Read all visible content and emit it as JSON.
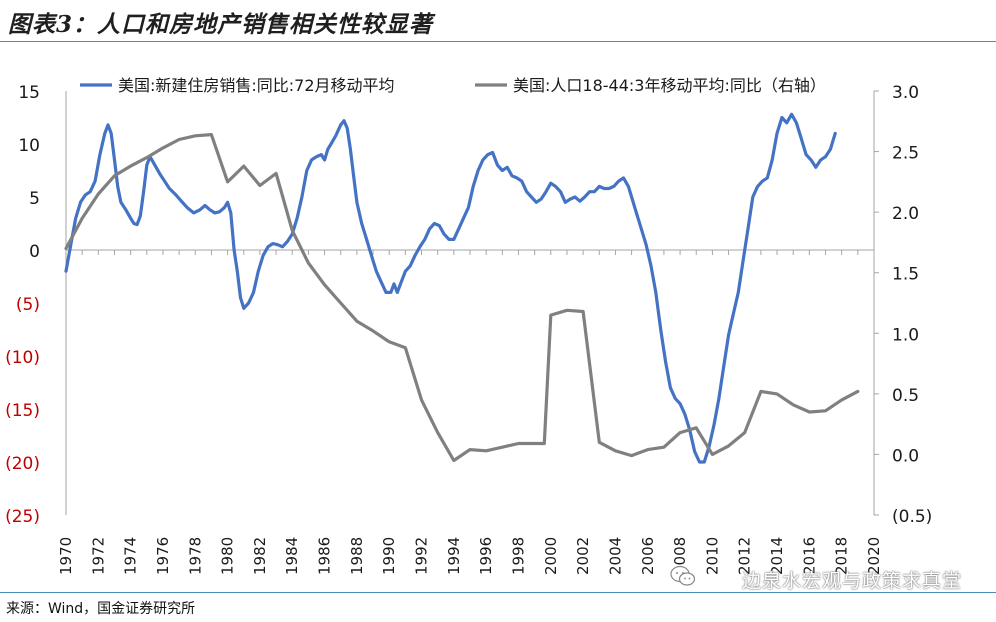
{
  "figure": {
    "title": "图表3：人口和房地产销售相关性较显著",
    "source": "来源：Wind，国金证券研究所",
    "watermark": "边泉水宏观与政策求真堂",
    "watermark_icon": "wechat-icon"
  },
  "colors": {
    "sales": "#4472c4",
    "population": "#808080",
    "negative_label": "#c00000",
    "axis_text": "#1a1a1a",
    "rule": "#4a8db7"
  },
  "chart_data": {
    "type": "line",
    "title": "",
    "xlabel": "",
    "ylabel": "",
    "xlim": [
      1970,
      2020
    ],
    "ylim_left": [
      -25,
      15
    ],
    "ylim_right": [
      -0.5,
      3.0
    ],
    "grid": false,
    "legend_position": "top",
    "x_tick_labels": [
      "1970",
      "1972",
      "1974",
      "1976",
      "1978",
      "1980",
      "1982",
      "1984",
      "1986",
      "1988",
      "1990",
      "1992",
      "1994",
      "1996",
      "1998",
      "2000",
      "2002",
      "2004",
      "2006",
      "2008",
      "2010",
      "2012",
      "2014",
      "2016",
      "2018",
      "2020"
    ],
    "y_left_tick_labels": [
      "15",
      "10",
      "5",
      "0",
      "(5)",
      "(10)",
      "(15)",
      "(20)",
      "(25)"
    ],
    "y_right_tick_labels": [
      "3.0",
      "2.5",
      "2.0",
      "1.5",
      "1.0",
      "0.5",
      "0.0",
      "(0.5)"
    ],
    "series": [
      {
        "name": "美国:新建住房销售:同比:72月移动平均",
        "axis": "left",
        "points": [
          [
            1970.0,
            -2.0
          ],
          [
            1970.3,
            0.5
          ],
          [
            1970.6,
            3.0
          ],
          [
            1970.9,
            4.5
          ],
          [
            1971.2,
            5.2
          ],
          [
            1971.5,
            5.5
          ],
          [
            1971.8,
            6.5
          ],
          [
            1972.1,
            9.0
          ],
          [
            1972.4,
            11.0
          ],
          [
            1972.6,
            11.8
          ],
          [
            1972.8,
            11.0
          ],
          [
            1973.0,
            8.5
          ],
          [
            1973.2,
            6.0
          ],
          [
            1973.4,
            4.5
          ],
          [
            1973.7,
            3.8
          ],
          [
            1974.0,
            3.0
          ],
          [
            1974.2,
            2.5
          ],
          [
            1974.4,
            2.4
          ],
          [
            1974.6,
            3.2
          ],
          [
            1974.8,
            5.5
          ],
          [
            1975.0,
            8.0
          ],
          [
            1975.2,
            8.8
          ],
          [
            1975.5,
            8.0
          ],
          [
            1975.8,
            7.2
          ],
          [
            1976.1,
            6.5
          ],
          [
            1976.4,
            5.8
          ],
          [
            1976.8,
            5.2
          ],
          [
            1977.2,
            4.5
          ],
          [
            1977.5,
            4.0
          ],
          [
            1977.9,
            3.5
          ],
          [
            1978.3,
            3.8
          ],
          [
            1978.6,
            4.2
          ],
          [
            1978.9,
            3.8
          ],
          [
            1979.2,
            3.5
          ],
          [
            1979.5,
            3.6
          ],
          [
            1979.8,
            4.0
          ],
          [
            1980.0,
            4.5
          ],
          [
            1980.2,
            3.5
          ],
          [
            1980.4,
            0.0
          ],
          [
            1980.6,
            -2.0
          ],
          [
            1980.8,
            -4.5
          ],
          [
            1981.0,
            -5.5
          ],
          [
            1981.3,
            -5.0
          ],
          [
            1981.6,
            -4.0
          ],
          [
            1981.9,
            -2.0
          ],
          [
            1982.2,
            -0.5
          ],
          [
            1982.5,
            0.3
          ],
          [
            1982.8,
            0.6
          ],
          [
            1983.1,
            0.5
          ],
          [
            1983.4,
            0.3
          ],
          [
            1983.7,
            0.8
          ],
          [
            1984.0,
            1.5
          ],
          [
            1984.3,
            3.0
          ],
          [
            1984.6,
            5.0
          ],
          [
            1984.9,
            7.5
          ],
          [
            1985.2,
            8.5
          ],
          [
            1985.5,
            8.8
          ],
          [
            1985.8,
            9.0
          ],
          [
            1986.0,
            8.5
          ],
          [
            1986.2,
            9.5
          ],
          [
            1986.4,
            10.0
          ],
          [
            1986.7,
            10.8
          ],
          [
            1987.0,
            11.8
          ],
          [
            1987.2,
            12.2
          ],
          [
            1987.4,
            11.5
          ],
          [
            1987.6,
            9.5
          ],
          [
            1987.8,
            7.0
          ],
          [
            1988.0,
            4.5
          ],
          [
            1988.3,
            2.5
          ],
          [
            1988.6,
            1.0
          ],
          [
            1988.9,
            -0.5
          ],
          [
            1989.2,
            -2.0
          ],
          [
            1989.5,
            -3.0
          ],
          [
            1989.8,
            -4.0
          ],
          [
            1990.1,
            -4.0
          ],
          [
            1990.3,
            -3.2
          ],
          [
            1990.5,
            -4.0
          ],
          [
            1990.7,
            -3.2
          ],
          [
            1991.0,
            -2.0
          ],
          [
            1991.3,
            -1.5
          ],
          [
            1991.6,
            -0.5
          ],
          [
            1991.9,
            0.3
          ],
          [
            1992.2,
            1.0
          ],
          [
            1992.5,
            2.0
          ],
          [
            1992.8,
            2.5
          ],
          [
            1993.1,
            2.3
          ],
          [
            1993.4,
            1.5
          ],
          [
            1993.7,
            1.0
          ],
          [
            1994.0,
            1.0
          ],
          [
            1994.3,
            2.0
          ],
          [
            1994.6,
            3.0
          ],
          [
            1994.9,
            4.0
          ],
          [
            1995.2,
            6.0
          ],
          [
            1995.5,
            7.5
          ],
          [
            1995.8,
            8.5
          ],
          [
            1996.1,
            9.0
          ],
          [
            1996.4,
            9.2
          ],
          [
            1996.7,
            8.0
          ],
          [
            1997.0,
            7.5
          ],
          [
            1997.3,
            7.8
          ],
          [
            1997.6,
            7.0
          ],
          [
            1997.9,
            6.8
          ],
          [
            1998.2,
            6.5
          ],
          [
            1998.5,
            5.5
          ],
          [
            1998.8,
            5.0
          ],
          [
            1999.1,
            4.5
          ],
          [
            1999.4,
            4.8
          ],
          [
            1999.7,
            5.5
          ],
          [
            2000.0,
            6.3
          ],
          [
            2000.3,
            6.0
          ],
          [
            2000.6,
            5.5
          ],
          [
            2000.9,
            4.5
          ],
          [
            2001.2,
            4.8
          ],
          [
            2001.5,
            5.0
          ],
          [
            2001.8,
            4.6
          ],
          [
            2002.1,
            5.0
          ],
          [
            2002.4,
            5.5
          ],
          [
            2002.7,
            5.5
          ],
          [
            2003.0,
            6.0
          ],
          [
            2003.3,
            5.8
          ],
          [
            2003.6,
            5.8
          ],
          [
            2003.9,
            6.0
          ],
          [
            2004.2,
            6.5
          ],
          [
            2004.5,
            6.8
          ],
          [
            2004.8,
            6.0
          ],
          [
            2005.0,
            5.0
          ],
          [
            2005.3,
            3.5
          ],
          [
            2005.6,
            2.0
          ],
          [
            2005.9,
            0.5
          ],
          [
            2006.2,
            -1.5
          ],
          [
            2006.5,
            -4.0
          ],
          [
            2006.8,
            -7.5
          ],
          [
            2007.1,
            -10.5
          ],
          [
            2007.4,
            -13.0
          ],
          [
            2007.7,
            -14.0
          ],
          [
            2008.0,
            -14.5
          ],
          [
            2008.3,
            -15.5
          ],
          [
            2008.6,
            -17.0
          ],
          [
            2008.9,
            -19.0
          ],
          [
            2009.2,
            -20.0
          ],
          [
            2009.5,
            -20.0
          ],
          [
            2009.8,
            -18.5
          ],
          [
            2010.1,
            -16.5
          ],
          [
            2010.4,
            -14.0
          ],
          [
            2010.7,
            -11.0
          ],
          [
            2011.0,
            -8.0
          ],
          [
            2011.3,
            -6.0
          ],
          [
            2011.6,
            -4.0
          ],
          [
            2011.9,
            -1.0
          ],
          [
            2012.2,
            2.0
          ],
          [
            2012.5,
            5.0
          ],
          [
            2012.8,
            6.0
          ],
          [
            2013.1,
            6.5
          ],
          [
            2013.4,
            6.8
          ],
          [
            2013.7,
            8.5
          ],
          [
            2014.0,
            11.0
          ],
          [
            2014.3,
            12.5
          ],
          [
            2014.6,
            12.0
          ],
          [
            2014.9,
            12.8
          ],
          [
            2015.2,
            12.0
          ],
          [
            2015.5,
            10.5
          ],
          [
            2015.8,
            9.0
          ],
          [
            2016.1,
            8.5
          ],
          [
            2016.4,
            7.8
          ],
          [
            2016.7,
            8.5
          ],
          [
            2017.0,
            8.8
          ],
          [
            2017.3,
            9.5
          ],
          [
            2017.6,
            11.0
          ]
        ]
      },
      {
        "name": "美国:人口18-44:3年移动平均:同比（右轴）",
        "axis": "right",
        "points": [
          [
            1970.0,
            1.7
          ],
          [
            1971.0,
            1.95
          ],
          [
            1972.0,
            2.15
          ],
          [
            1973.0,
            2.3
          ],
          [
            1974.0,
            2.38
          ],
          [
            1975.0,
            2.45
          ],
          [
            1976.0,
            2.53
          ],
          [
            1977.0,
            2.6
          ],
          [
            1978.0,
            2.63
          ],
          [
            1979.0,
            2.64
          ],
          [
            1980.0,
            2.25
          ],
          [
            1981.0,
            2.38
          ],
          [
            1982.0,
            2.22
          ],
          [
            1983.0,
            2.32
          ],
          [
            1984.0,
            1.85
          ],
          [
            1985.0,
            1.58
          ],
          [
            1986.0,
            1.4
          ],
          [
            1987.0,
            1.25
          ],
          [
            1988.0,
            1.1
          ],
          [
            1989.0,
            1.02
          ],
          [
            1990.0,
            0.93
          ],
          [
            1991.0,
            0.88
          ],
          [
            1992.0,
            0.45
          ],
          [
            1993.0,
            0.18
          ],
          [
            1994.0,
            -0.05
          ],
          [
            1995.0,
            0.04
          ],
          [
            1996.0,
            0.03
          ],
          [
            1997.0,
            0.06
          ],
          [
            1998.0,
            0.09
          ],
          [
            1999.0,
            0.09
          ],
          [
            1999.6,
            0.09
          ],
          [
            2000.0,
            1.15
          ],
          [
            2001.0,
            1.19
          ],
          [
            2002.0,
            1.18
          ],
          [
            2003.0,
            0.1
          ],
          [
            2004.0,
            0.03
          ],
          [
            2005.0,
            -0.01
          ],
          [
            2006.0,
            0.04
          ],
          [
            2007.0,
            0.06
          ],
          [
            2008.0,
            0.18
          ],
          [
            2009.0,
            0.22
          ],
          [
            2010.0,
            0.0
          ],
          [
            2011.0,
            0.07
          ],
          [
            2012.0,
            0.18
          ],
          [
            2013.0,
            0.52
          ],
          [
            2014.0,
            0.5
          ],
          [
            2015.0,
            0.41
          ],
          [
            2016.0,
            0.35
          ],
          [
            2017.0,
            0.36
          ],
          [
            2018.0,
            0.45
          ],
          [
            2019.0,
            0.52
          ]
        ]
      }
    ]
  }
}
